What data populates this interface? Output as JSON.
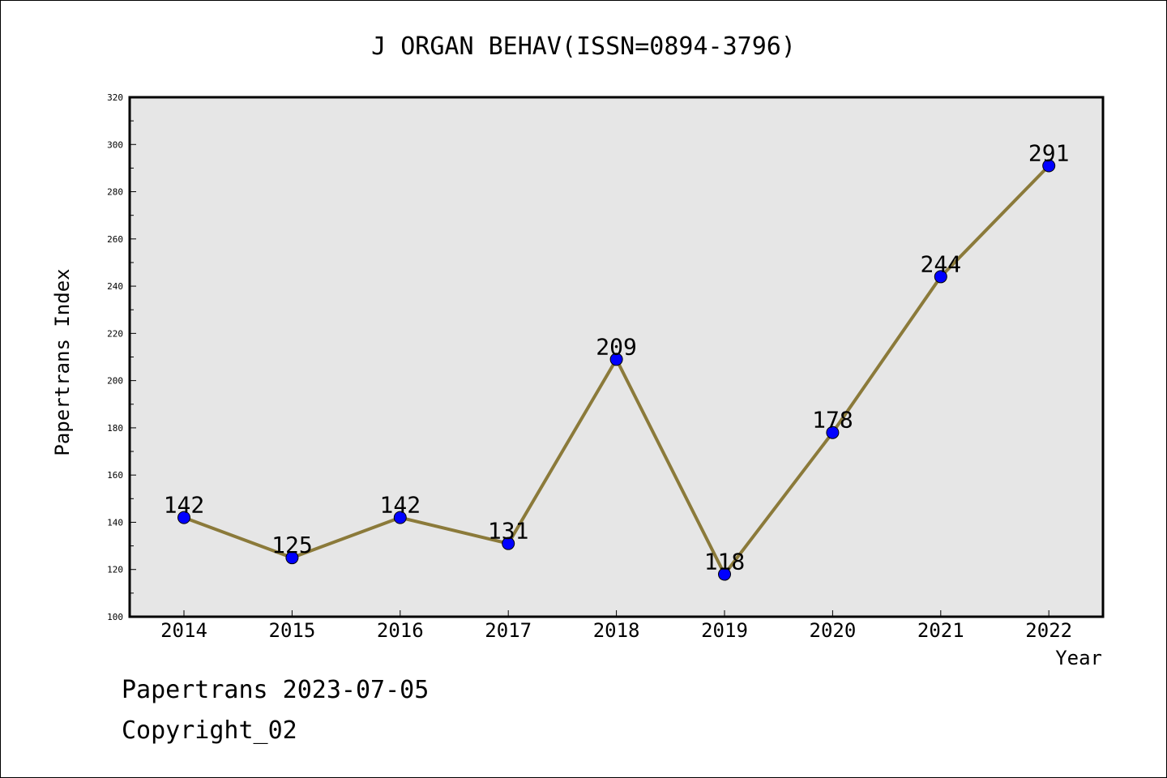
{
  "chart_data": {
    "type": "line",
    "title": "J ORGAN BEHAV(ISSN=0894-3796)",
    "xlabel": "Year",
    "ylabel": "Papertrans Index",
    "categories": [
      "2014",
      "2015",
      "2016",
      "2017",
      "2018",
      "2019",
      "2020",
      "2021",
      "2022"
    ],
    "values": [
      142,
      125,
      142,
      131,
      209,
      118,
      178,
      244,
      291
    ],
    "data_labels": [
      "142",
      "125",
      "142",
      "131",
      "209",
      "118",
      "178",
      "244",
      "291"
    ],
    "ylim": [
      100,
      320
    ],
    "y_ticks": [
      "100",
      "120",
      "140",
      "160",
      "180",
      "200",
      "220",
      "240",
      "260",
      "280",
      "300",
      "320"
    ],
    "grid": false,
    "colors": {
      "line": "#8b7a3a",
      "marker": "#0000ff",
      "plot_background": "#e6e6e6"
    }
  },
  "footer": {
    "line1": "Papertrans 2023-07-05",
    "line2": "Copyright_02"
  }
}
